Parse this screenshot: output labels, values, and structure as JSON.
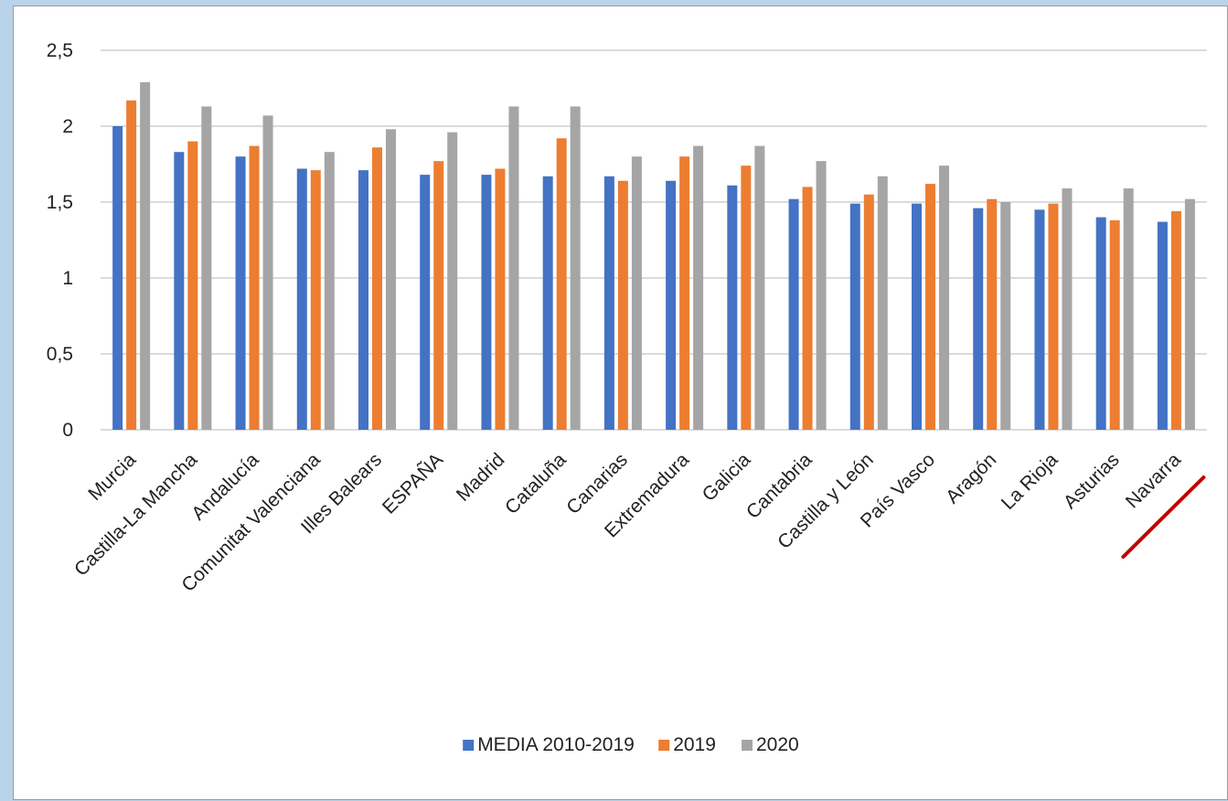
{
  "chart_data": {
    "type": "bar",
    "title": "",
    "xlabel": "",
    "ylabel": "",
    "ylim": [
      0,
      2.5
    ],
    "yticks": [
      0,
      0.5,
      1,
      1.5,
      2,
      2.5
    ],
    "ytick_labels": [
      "0",
      "0,5",
      "1",
      "1,5",
      "2",
      "2,5"
    ],
    "grid": "horizontal",
    "legend_position": "bottom",
    "categories": [
      "Murcia",
      "Castilla-La Mancha",
      "Andalucía",
      "Comunitat Valenciana",
      "Illes Balears",
      "ESPAÑA",
      "Madrid",
      "Cataluña",
      "Canarias",
      "Extremadura",
      "Galicia",
      "Cantabria",
      "Castilla y León",
      "País Vasco",
      "Aragón",
      "La Rioja",
      "Asturias",
      "Navarra"
    ],
    "series": [
      {
        "name": "MEDIA 2010-2019",
        "color": "#4472c4",
        "values": [
          2.0,
          1.83,
          1.8,
          1.72,
          1.71,
          1.68,
          1.68,
          1.67,
          1.67,
          1.64,
          1.61,
          1.52,
          1.49,
          1.49,
          1.46,
          1.45,
          1.4,
          1.37
        ]
      },
      {
        "name": "2019",
        "color": "#ed7d31",
        "values": [
          2.17,
          1.9,
          1.87,
          1.71,
          1.86,
          1.77,
          1.72,
          1.92,
          1.64,
          1.8,
          1.74,
          1.6,
          1.55,
          1.62,
          1.52,
          1.49,
          1.38,
          1.44
        ]
      },
      {
        "name": "2020",
        "color": "#a5a5a5",
        "values": [
          2.29,
          2.13,
          2.07,
          1.83,
          1.98,
          1.96,
          2.13,
          2.13,
          1.8,
          1.87,
          1.87,
          1.77,
          1.67,
          1.74,
          1.5,
          1.59,
          1.59,
          1.52
        ]
      }
    ],
    "annotation": {
      "type": "underline-strike",
      "target": "Navarra",
      "color": "#c00000"
    }
  }
}
